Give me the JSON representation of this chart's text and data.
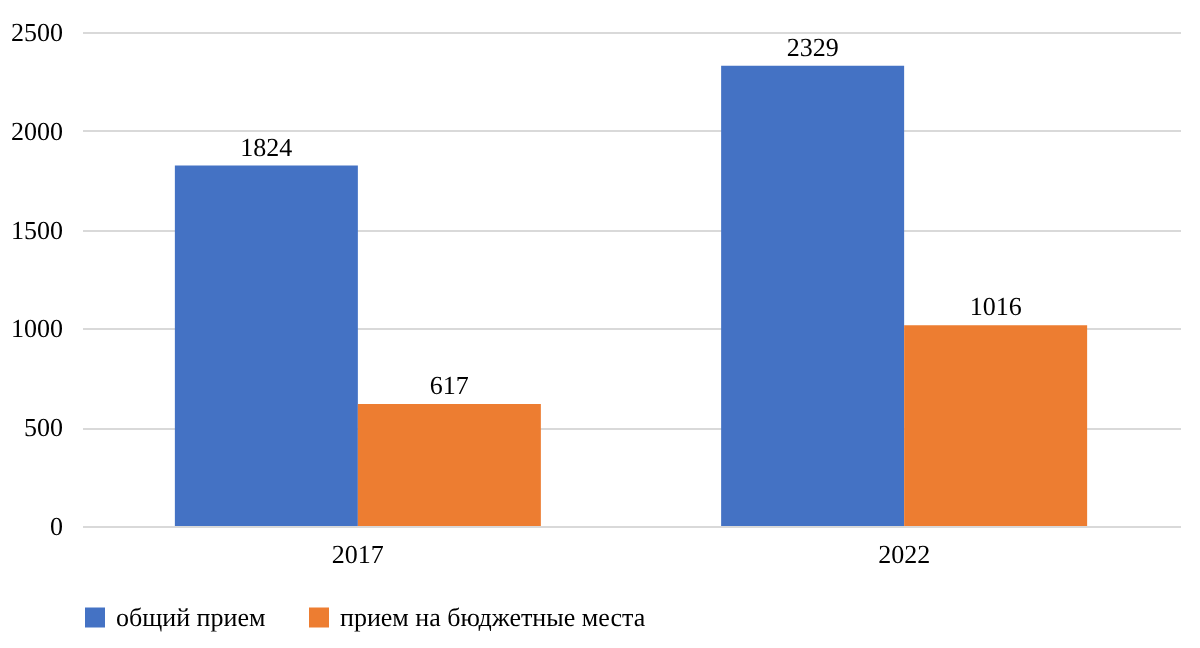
{
  "chart_data": {
    "type": "bar",
    "categories": [
      "2017",
      "2022"
    ],
    "series": [
      {
        "name": "общий прием",
        "color": "#4472c4",
        "values": [
          1824,
          2329
        ]
      },
      {
        "name": "прием на бюджетные места",
        "color": "#ed7d31",
        "values": [
          617,
          1016
        ]
      }
    ],
    "ylim": [
      0,
      2500
    ],
    "yticks": [
      0,
      500,
      1000,
      1500,
      2000,
      2500
    ],
    "grid": "y",
    "legend": "bottom",
    "data_labels": true
  }
}
